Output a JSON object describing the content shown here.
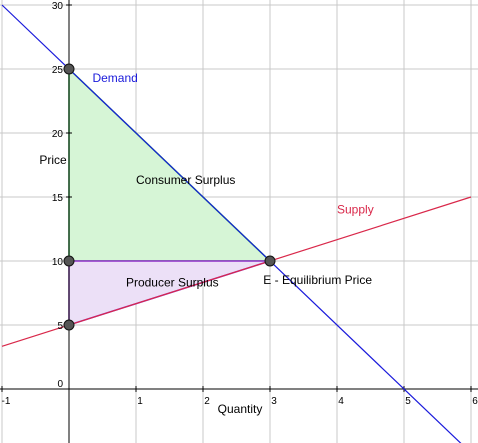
{
  "chart_data": {
    "type": "line",
    "title": "",
    "xlabel": "Quantity",
    "ylabel": "Price",
    "xlim": [
      -1,
      6
    ],
    "ylim": [
      0,
      30
    ],
    "grid": true,
    "x_ticks": [
      "-1",
      "1",
      "2",
      "3",
      "4",
      "5",
      "6"
    ],
    "y_ticks": [
      "0",
      "5",
      "10",
      "15",
      "20",
      "25",
      "30"
    ],
    "series": [
      {
        "name": "Demand",
        "color": "#1a1adb",
        "x": [
          -1,
          6
        ],
        "y": [
          30,
          -5
        ],
        "label_at": [
          0.35,
          24
        ]
      },
      {
        "name": "Supply",
        "color": "#d9284a",
        "x": [
          -1,
          6
        ],
        "y": [
          3.3333,
          15
        ],
        "label_at": [
          4.0,
          13.7
        ]
      }
    ],
    "regions": [
      {
        "label": "Consumer Surplus",
        "fill": "#d6f5d6",
        "stroke": "#22bb44",
        "points": [
          [
            0,
            25
          ],
          [
            3,
            10
          ],
          [
            0,
            10
          ]
        ],
        "label_at": [
          1.0,
          16
        ]
      },
      {
        "label": "Producer Surplus",
        "fill": "#ece0f7",
        "stroke": "#8e2ec9",
        "points": [
          [
            0,
            10
          ],
          [
            3,
            10
          ],
          [
            0,
            5
          ]
        ],
        "label_at": [
          0.85,
          8
        ]
      }
    ],
    "points": [
      {
        "x": 0,
        "y": 25
      },
      {
        "x": 0,
        "y": 10
      },
      {
        "x": 0,
        "y": 5
      },
      {
        "x": 3,
        "y": 10
      }
    ],
    "annotations": [
      {
        "text": "E - Equilibrium Price",
        "x": 3,
        "y": 10,
        "label_at": [
          2.9,
          8.2
        ]
      }
    ]
  }
}
